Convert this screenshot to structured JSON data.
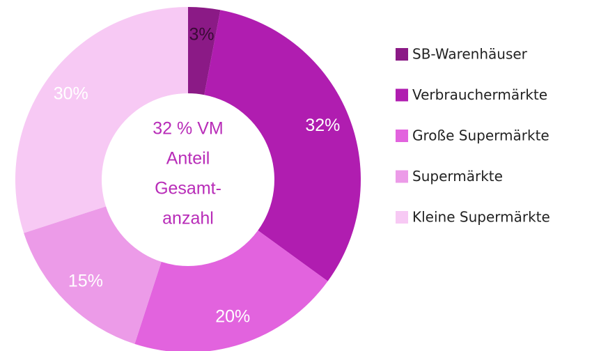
{
  "chart_data": {
    "type": "donut",
    "center_text": [
      "32 % VM",
      "Anteil",
      "Gesamt-",
      "anzahl"
    ],
    "categories": [
      "SB-Warenhäuser",
      "Verbrauchermärkte",
      "Große Supermärkte",
      "Supermärkte",
      "Kleine Supermärkte"
    ],
    "values": [
      3,
      32,
      20,
      15,
      30
    ],
    "value_labels": [
      "3%",
      "32%",
      "20%",
      "15%",
      "30%"
    ],
    "colors": [
      "#8b1a86",
      "#b01db0",
      "#e263de",
      "#ec9be8",
      "#f7c9f4"
    ],
    "legend": "right"
  }
}
